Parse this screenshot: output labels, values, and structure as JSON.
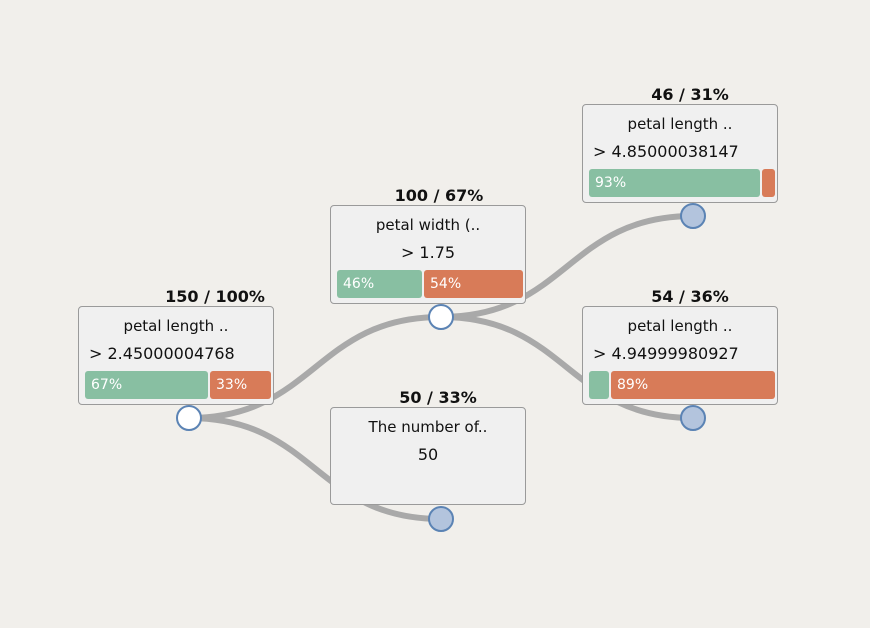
{
  "colors": {
    "background": "#f1efeb",
    "link": "#a9a9a9",
    "class_a": "#88bfa2",
    "class_b": "#d87b58",
    "circle_border": "#5b83b4",
    "circle_collapsed": "#b3c4dd",
    "circle_expanded": "#ffffff"
  },
  "nodes": [
    {
      "count": "150 / 100%",
      "title": "petal length ..",
      "condition": "> 2.45000004768",
      "bar_a": "67%",
      "bar_b": "33%",
      "share_a": 0.67,
      "share_b": 0.33,
      "expanded": true
    },
    {
      "count": "100 / 67%",
      "title": "petal width (..",
      "condition": "> 1.75",
      "bar_a": "46%",
      "bar_b": "54%",
      "share_a": 0.46,
      "share_b": 0.54,
      "expanded": true
    },
    {
      "count": "50 / 33%",
      "title": "The number of..",
      "condition": "50",
      "expanded": false
    },
    {
      "count": "46 / 31%",
      "title": "petal length ..",
      "condition": "> 4.85000038147",
      "bar_a": "93%",
      "bar_b": "",
      "share_a": 0.93,
      "share_b": 0.07,
      "expanded": false
    },
    {
      "count": "54 / 36%",
      "title": "petal length ..",
      "condition": "> 4.94999980927",
      "bar_a": "",
      "bar_b": "89%",
      "share_a": 0.11,
      "share_b": 0.89,
      "expanded": false
    }
  ],
  "edges": [
    {
      "from": 0,
      "to": 1
    },
    {
      "from": 0,
      "to": 2
    },
    {
      "from": 1,
      "to": 3
    },
    {
      "from": 1,
      "to": 4
    }
  ]
}
